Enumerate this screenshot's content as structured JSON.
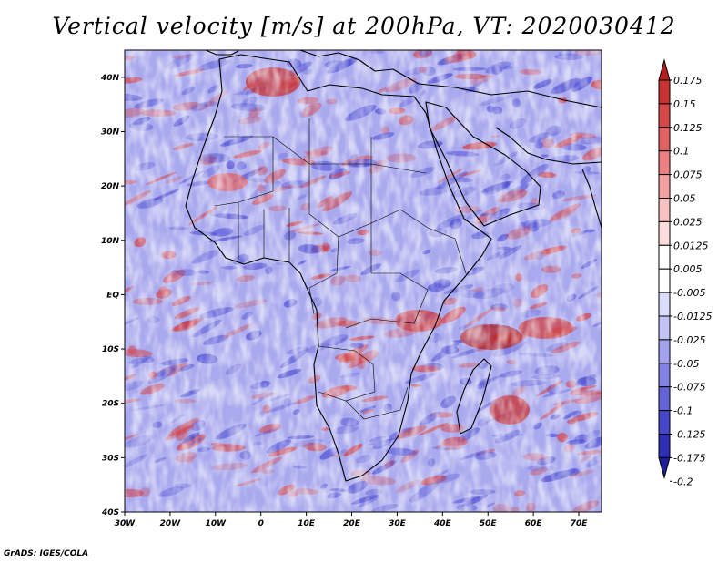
{
  "title": "Vertical velocity [m/s] at 200hPa, VT: 2020030412",
  "credit": "GrADS: IGES/COLA",
  "map": {
    "lon_range": [
      -30,
      75
    ],
    "lat_range": [
      -40,
      45
    ],
    "lon_ticks": [
      "30W",
      "20W",
      "10W",
      "0",
      "10E",
      "20E",
      "30E",
      "40E",
      "50E",
      "60E",
      "70E"
    ],
    "lat_ticks": [
      "40N",
      "30N",
      "20N",
      "10N",
      "EQ",
      "10S",
      "20S",
      "30S",
      "40S"
    ]
  },
  "colorbar": {
    "labels": [
      "0.175",
      "0.15",
      "0.125",
      "0.1",
      "0.075",
      "0.05",
      "0.025",
      "0.0125",
      "0.005",
      "-0.005",
      "-0.0125",
      "-0.025",
      "-0.05",
      "-0.075",
      "-0.1",
      "-0.125",
      "-0.175",
      "-0.2"
    ],
    "colors": [
      "#b41e1e",
      "#c83232",
      "#d74848",
      "#e26262",
      "#ec8080",
      "#f3a0a0",
      "#f8c2c2",
      "#fcdcdc",
      "#ffffff",
      "#ffffff",
      "#dcdcfc",
      "#c2c2f6",
      "#a2a2ee",
      "#8282e4",
      "#6464d8",
      "#4646c8",
      "#2e2eb4",
      "#1e1e9c"
    ]
  },
  "colors": {
    "warm": "#d63c3c",
    "cool": "#4a4ad2",
    "coast": "#000000"
  }
}
